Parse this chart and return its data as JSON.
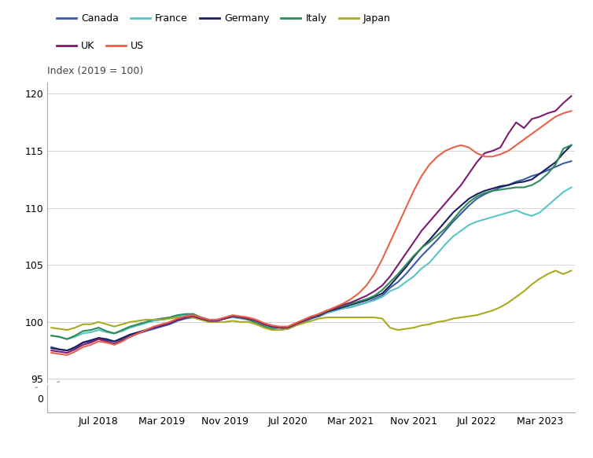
{
  "ylabel": "Index (2019 = 100)",
  "ylim_top": 121,
  "ylim_data_bottom": 94.5,
  "ylim_data_top": 121,
  "yticks_data": [
    95,
    100,
    105,
    110,
    115,
    120
  ],
  "yticks_zero": [
    0
  ],
  "background_color": "#ffffff",
  "grid_color": "#d5d5d5",
  "legend_entries": [
    "Canada",
    "France",
    "Germany",
    "Italy",
    "Japan",
    "UK",
    "US"
  ],
  "legend_row1": [
    "Canada",
    "France",
    "Germany",
    "Italy",
    "Japan"
  ],
  "legend_row2": [
    "UK",
    "US"
  ],
  "line_colors": {
    "Canada": "#3A5CA8",
    "France": "#5BC4C4",
    "Germany": "#1A1F5E",
    "Italy": "#2E8B57",
    "Japan": "#AAAA22",
    "UK": "#7B1C6E",
    "US": "#E8614A"
  },
  "series": {
    "Canada": [
      97.8,
      97.6,
      97.5,
      97.7,
      98.2,
      98.3,
      98.6,
      98.4,
      98.3,
      98.5,
      98.8,
      99.0,
      99.2,
      99.4,
      99.6,
      99.8,
      100.1,
      100.3,
      100.4,
      100.2,
      100.1,
      100.2,
      100.3,
      100.5,
      100.4,
      100.3,
      100.1,
      99.8,
      99.6,
      99.5,
      99.4,
      99.7,
      100.0,
      100.3,
      100.5,
      100.8,
      101.0,
      101.2,
      101.3,
      101.5,
      101.7,
      102.0,
      102.3,
      103.0,
      103.5,
      104.2,
      105.0,
      105.8,
      106.5,
      107.2,
      108.0,
      108.8,
      109.5,
      110.2,
      110.8,
      111.2,
      111.5,
      111.8,
      112.0,
      112.3,
      112.5,
      112.8,
      113.0,
      113.3,
      113.6,
      113.9,
      114.1
    ],
    "France": [
      98.8,
      98.7,
      98.5,
      98.7,
      99.0,
      99.1,
      99.3,
      99.1,
      99.0,
      99.2,
      99.5,
      99.7,
      99.9,
      100.1,
      100.2,
      100.3,
      100.5,
      100.6,
      100.7,
      100.4,
      100.2,
      100.2,
      100.3,
      100.4,
      100.3,
      100.2,
      100.0,
      99.7,
      99.5,
      99.5,
      99.5,
      99.8,
      100.1,
      100.4,
      100.6,
      100.8,
      101.0,
      101.2,
      101.3,
      101.5,
      101.7,
      101.9,
      102.2,
      102.7,
      103.0,
      103.5,
      104.0,
      104.7,
      105.2,
      106.0,
      106.8,
      107.5,
      108.0,
      108.5,
      108.8,
      109.0,
      109.2,
      109.4,
      109.6,
      109.8,
      109.5,
      109.3,
      109.6,
      110.2,
      110.8,
      111.4,
      111.8
    ],
    "Germany": [
      97.7,
      97.6,
      97.5,
      97.8,
      98.2,
      98.4,
      98.6,
      98.5,
      98.3,
      98.6,
      98.9,
      99.1,
      99.3,
      99.5,
      99.7,
      99.9,
      100.2,
      100.4,
      100.5,
      100.3,
      100.1,
      100.1,
      100.3,
      100.5,
      100.4,
      100.3,
      100.1,
      99.8,
      99.6,
      99.5,
      99.5,
      99.8,
      100.1,
      100.4,
      100.6,
      100.9,
      101.1,
      101.3,
      101.5,
      101.7,
      101.9,
      102.2,
      102.5,
      103.2,
      104.0,
      104.8,
      105.7,
      106.5,
      107.2,
      108.0,
      108.8,
      109.6,
      110.2,
      110.8,
      111.2,
      111.5,
      111.7,
      111.9,
      112.0,
      112.2,
      112.3,
      112.5,
      113.0,
      113.5,
      114.0,
      114.8,
      115.5
    ],
    "Italy": [
      98.8,
      98.7,
      98.5,
      98.8,
      99.2,
      99.3,
      99.5,
      99.2,
      99.0,
      99.3,
      99.6,
      99.8,
      100.0,
      100.2,
      100.3,
      100.4,
      100.6,
      100.7,
      100.7,
      100.4,
      100.2,
      100.2,
      100.3,
      100.5,
      100.4,
      100.2,
      99.9,
      99.6,
      99.4,
      99.3,
      99.4,
      99.7,
      100.0,
      100.4,
      100.7,
      101.0,
      101.2,
      101.4,
      101.6,
      101.8,
      102.0,
      102.3,
      102.8,
      103.5,
      104.2,
      105.0,
      105.8,
      106.5,
      107.0,
      107.6,
      108.2,
      109.0,
      109.8,
      110.5,
      111.0,
      111.3,
      111.5,
      111.6,
      111.7,
      111.8,
      111.8,
      112.0,
      112.4,
      113.0,
      113.8,
      115.2,
      115.5
    ],
    "Japan": [
      99.5,
      99.4,
      99.3,
      99.5,
      99.8,
      99.8,
      100.0,
      99.8,
      99.6,
      99.8,
      100.0,
      100.1,
      100.2,
      100.2,
      100.2,
      100.3,
      100.4,
      100.4,
      100.4,
      100.2,
      100.0,
      100.0,
      100.0,
      100.1,
      100.0,
      100.0,
      99.8,
      99.5,
      99.3,
      99.3,
      99.4,
      99.7,
      99.9,
      100.1,
      100.3,
      100.4,
      100.4,
      100.4,
      100.4,
      100.4,
      100.4,
      100.4,
      100.3,
      99.5,
      99.3,
      99.4,
      99.5,
      99.7,
      99.8,
      100.0,
      100.1,
      100.3,
      100.4,
      100.5,
      100.6,
      100.8,
      101.0,
      101.3,
      101.7,
      102.2,
      102.7,
      103.3,
      103.8,
      104.2,
      104.5,
      104.2,
      104.5
    ],
    "UK": [
      97.5,
      97.4,
      97.3,
      97.6,
      98.0,
      98.2,
      98.5,
      98.3,
      98.1,
      98.4,
      98.7,
      99.0,
      99.3,
      99.5,
      99.7,
      99.9,
      100.2,
      100.4,
      100.5,
      100.3,
      100.1,
      100.1,
      100.3,
      100.5,
      100.4,
      100.3,
      100.1,
      99.8,
      99.6,
      99.5,
      99.5,
      99.8,
      100.1,
      100.4,
      100.7,
      101.0,
      101.2,
      101.5,
      101.7,
      102.0,
      102.3,
      102.7,
      103.2,
      104.0,
      105.0,
      106.0,
      107.0,
      108.0,
      108.8,
      109.6,
      110.4,
      111.2,
      112.0,
      113.0,
      114.0,
      114.8,
      115.0,
      115.3,
      116.5,
      117.5,
      117.0,
      117.8,
      118.0,
      118.3,
      118.5,
      119.2,
      119.8
    ],
    "US": [
      97.3,
      97.2,
      97.1,
      97.4,
      97.8,
      98.0,
      98.3,
      98.2,
      98.0,
      98.3,
      98.7,
      99.0,
      99.3,
      99.6,
      99.8,
      100.0,
      100.3,
      100.5,
      100.6,
      100.4,
      100.2,
      100.2,
      100.4,
      100.6,
      100.5,
      100.4,
      100.2,
      99.9,
      99.7,
      99.6,
      99.6,
      99.9,
      100.2,
      100.5,
      100.7,
      101.0,
      101.3,
      101.6,
      102.0,
      102.5,
      103.2,
      104.2,
      105.5,
      107.0,
      108.5,
      110.0,
      111.5,
      112.8,
      113.8,
      114.5,
      115.0,
      115.3,
      115.5,
      115.3,
      114.8,
      114.5,
      114.5,
      114.7,
      115.0,
      115.5,
      116.0,
      116.5,
      117.0,
      117.5,
      118.0,
      118.3,
      118.5
    ]
  },
  "n_points": 67,
  "x_tick_labels": [
    "Jul 2018",
    "Mar 2019",
    "Nov 2019",
    "Jul 2020",
    "Mar 2021",
    "Nov 2021",
    "Jul 2022",
    "Mar 2023"
  ],
  "x_tick_positions": [
    6,
    14,
    22,
    30,
    38,
    46,
    54,
    62
  ]
}
